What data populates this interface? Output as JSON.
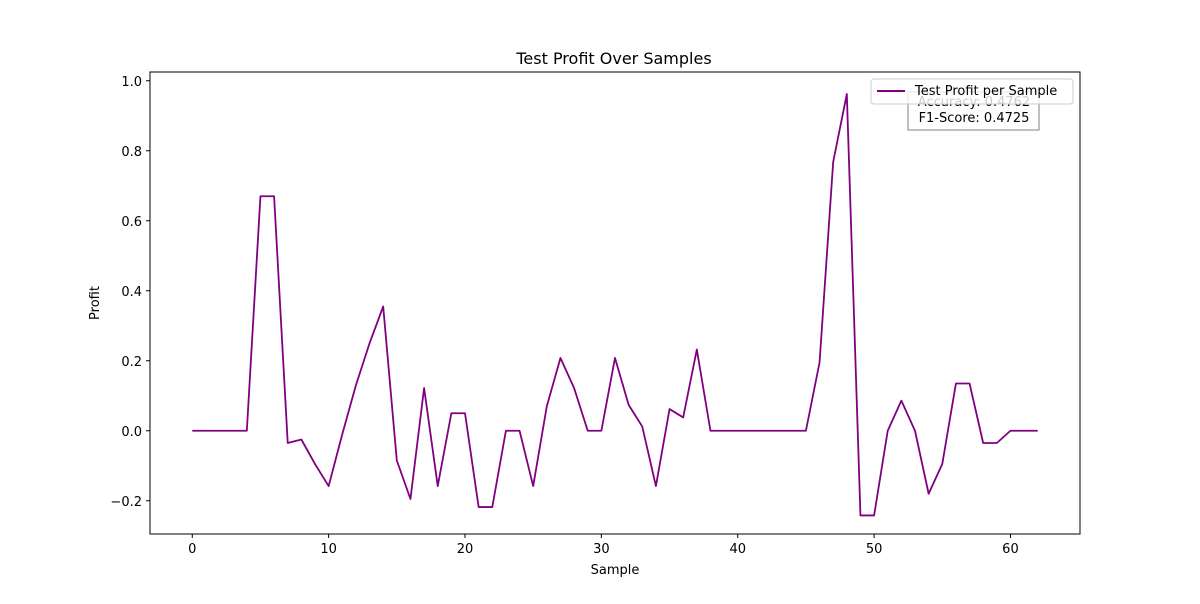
{
  "chart_data": {
    "type": "line",
    "title": "Test Profit Over Samples",
    "xlabel": "Sample",
    "ylabel": "Profit",
    "xlim": [
      -3.1,
      65.1
    ],
    "ylim": [
      -0.295,
      1.025
    ],
    "xticks": [
      0,
      10,
      20,
      30,
      40,
      50,
      60
    ],
    "yticks": [
      -0.2,
      0.0,
      0.2,
      0.4,
      0.6,
      0.8,
      1.0
    ],
    "xtick_labels": [
      "0",
      "10",
      "20",
      "30",
      "40",
      "50",
      "60"
    ],
    "ytick_labels": [
      "−0.2",
      "0.0",
      "0.2",
      "0.4",
      "0.6",
      "0.8",
      "1.0"
    ],
    "grid": false,
    "legend_position": "top-right",
    "series": [
      {
        "name": "Test Profit per Sample",
        "color": "#800080",
        "x": [
          0,
          1,
          2,
          3,
          4,
          5,
          6,
          7,
          8,
          9,
          10,
          11,
          12,
          13,
          14,
          15,
          16,
          17,
          18,
          19,
          20,
          21,
          22,
          23,
          24,
          25,
          26,
          27,
          28,
          29,
          30,
          31,
          32,
          33,
          34,
          35,
          36,
          37,
          38,
          39,
          40,
          41,
          42,
          43,
          44,
          45,
          46,
          47,
          48,
          49,
          50,
          51,
          52,
          53,
          54,
          55,
          56,
          57,
          58,
          59,
          60,
          61,
          62
        ],
        "values": [
          0,
          0,
          0,
          0,
          0,
          0.67,
          0.67,
          -0.035,
          -0.025,
          -0.095,
          -0.158,
          -0.01,
          0.13,
          0.25,
          0.355,
          -0.085,
          -0.195,
          0.122,
          -0.158,
          0.05,
          0.05,
          -0.218,
          -0.218,
          0,
          0,
          -0.158,
          0.07,
          0.208,
          0.122,
          0,
          0,
          0.208,
          0.074,
          0.012,
          -0.158,
          0.062,
          0.038,
          0.232,
          0,
          0,
          0,
          0,
          0,
          0,
          0,
          0,
          0.195,
          0.768,
          0.962,
          -0.242,
          -0.242,
          0,
          0.086,
          0,
          -0.18,
          -0.095,
          0.135,
          0.135,
          -0.035,
          -0.035,
          0,
          0,
          0
        ]
      }
    ],
    "annotations": [
      {
        "lines": [
          "Accuracy: 0.4762",
          "F1-Score: 0.4725"
        ],
        "position": "top-right"
      }
    ]
  }
}
